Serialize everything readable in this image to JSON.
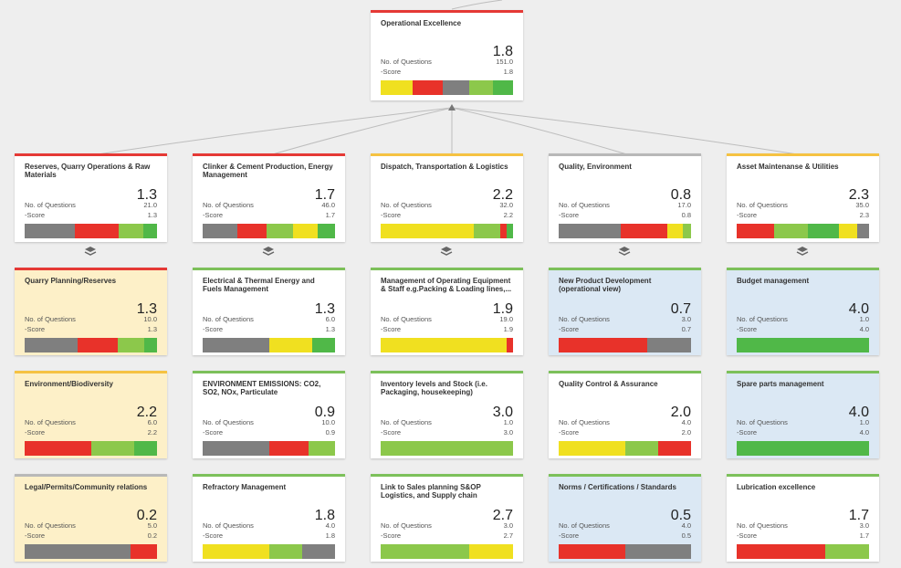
{
  "colors": {
    "red": "#e8322a",
    "yellow": "#f0e020",
    "gray": "#7f7f7f",
    "lightgreen": "#8cc84b",
    "green": "#50b848",
    "accent_red": "#e53935",
    "accent_yellow": "#f5c242",
    "accent_gray": "#b8b8b8",
    "accent_green": "#7cc05a"
  },
  "labels": {
    "questions": "No. of Questions",
    "score": "-Score"
  },
  "icons": {
    "expand": "layers-icon",
    "parent_link": "arrow-up-icon"
  },
  "root": {
    "title": "Operational Excellence",
    "score": "1.8",
    "questions": "151.0",
    "score_value": "1.8",
    "accent": "accent_red",
    "bar": [
      [
        "yellow",
        0.24
      ],
      [
        "red",
        0.23
      ],
      [
        "gray",
        0.2
      ],
      [
        "lightgreen",
        0.18
      ],
      [
        "green",
        0.15
      ]
    ]
  },
  "level1": [
    {
      "title": "Reserves, Quarry Operations & Raw Materials",
      "score": "1.3",
      "questions": "21.0",
      "score_value": "1.3",
      "accent": "accent_red",
      "bar": [
        [
          "gray",
          0.38
        ],
        [
          "red",
          0.33
        ],
        [
          "lightgreen",
          0.19
        ],
        [
          "green",
          0.1
        ]
      ]
    },
    {
      "title": "Clinker & Cement Production, Energy Management",
      "score": "1.7",
      "questions": "46.0",
      "score_value": "1.7",
      "accent": "accent_red",
      "bar": [
        [
          "gray",
          0.26
        ],
        [
          "red",
          0.22
        ],
        [
          "lightgreen",
          0.2
        ],
        [
          "yellow",
          0.19
        ],
        [
          "green",
          0.13
        ]
      ]
    },
    {
      "title": "Dispatch, Transportation & Logistics",
      "score": "2.2",
      "questions": "32.0",
      "score_value": "2.2",
      "accent": "accent_yellow",
      "bar": [
        [
          "yellow",
          0.7
        ],
        [
          "lightgreen",
          0.2
        ],
        [
          "red",
          0.05
        ],
        [
          "green",
          0.05
        ]
      ]
    },
    {
      "title": "Quality, Environment",
      "score": "0.8",
      "questions": "17.0",
      "score_value": "0.8",
      "accent": "accent_gray",
      "bar": [
        [
          "gray",
          0.47
        ],
        [
          "red",
          0.35
        ],
        [
          "yellow",
          0.12
        ],
        [
          "lightgreen",
          0.06
        ]
      ]
    },
    {
      "title": "Asset Maintenanse & Utilities",
      "score": "2.3",
      "questions": "35.0",
      "score_value": "2.3",
      "accent": "accent_yellow",
      "bar": [
        [
          "red",
          0.28
        ],
        [
          "lightgreen",
          0.26
        ],
        [
          "green",
          0.23
        ],
        [
          "yellow",
          0.14
        ],
        [
          "gray",
          0.09
        ]
      ]
    }
  ],
  "level2": [
    [
      {
        "title": "Quarry Planning/Reserves",
        "score": "1.3",
        "questions": "10.0",
        "score_value": "1.3",
        "accent": "accent_red",
        "bg": "yellowbg",
        "bar": [
          [
            "gray",
            0.4
          ],
          [
            "red",
            0.3
          ],
          [
            "lightgreen",
            0.2
          ],
          [
            "green",
            0.1
          ]
        ]
      },
      {
        "title": "Environment/Biodiversity",
        "score": "2.2",
        "questions": "6.0",
        "score_value": "2.2",
        "accent": "accent_yellow",
        "bg": "yellowbg",
        "bar": [
          [
            "red",
            0.5
          ],
          [
            "lightgreen",
            0.33
          ],
          [
            "green",
            0.17
          ]
        ]
      },
      {
        "title": "Legal/Permits/Community relations",
        "score": "0.2",
        "questions": "5.0",
        "score_value": "0.2",
        "accent": "accent_gray",
        "bg": "yellowbg",
        "bar": [
          [
            "gray",
            0.8
          ],
          [
            "red",
            0.2
          ]
        ]
      }
    ],
    [
      {
        "title": "Electrical & Thermal Energy and Fuels Management",
        "score": "1.3",
        "questions": "6.0",
        "score_value": "1.3",
        "accent": "accent_green",
        "bg": "",
        "bar": [
          [
            "gray",
            0.5
          ],
          [
            "yellow",
            0.33
          ],
          [
            "green",
            0.17
          ]
        ]
      },
      {
        "title": "ENVIRONMENT EMISSIONS: CO2, SO2, NOx, Particulate",
        "score": "0.9",
        "questions": "10.0",
        "score_value": "0.9",
        "accent": "accent_green",
        "bg": "",
        "bar": [
          [
            "gray",
            0.5
          ],
          [
            "red",
            0.3
          ],
          [
            "lightgreen",
            0.2
          ]
        ]
      },
      {
        "title": "Refractory Management",
        "score": "1.8",
        "questions": "4.0",
        "score_value": "1.8",
        "accent": "accent_green",
        "bg": "",
        "bar": [
          [
            "yellow",
            0.5
          ],
          [
            "lightgreen",
            0.25
          ],
          [
            "gray",
            0.25
          ]
        ]
      }
    ],
    [
      {
        "title": "Management of Operating Equipment & Staff e.g.Packing & Loading lines,...",
        "score": "1.9",
        "questions": "19.0",
        "score_value": "1.9",
        "accent": "accent_green",
        "bg": "",
        "bar": [
          [
            "yellow",
            0.95
          ],
          [
            "red",
            0.05
          ]
        ]
      },
      {
        "title": "Inventory levels and Stock (i.e. Packaging, housekeeping)",
        "score": "3.0",
        "questions": "1.0",
        "score_value": "3.0",
        "accent": "accent_green",
        "bg": "",
        "bar": [
          [
            "lightgreen",
            1.0
          ]
        ]
      },
      {
        "title": "Link to Sales planning S&OP Logistics, and Supply chain",
        "score": "2.7",
        "questions": "3.0",
        "score_value": "2.7",
        "accent": "accent_green",
        "bg": "",
        "bar": [
          [
            "lightgreen",
            0.67
          ],
          [
            "yellow",
            0.33
          ]
        ]
      }
    ],
    [
      {
        "title": "New Product Development (operational view)",
        "score": "0.7",
        "questions": "3.0",
        "score_value": "0.7",
        "accent": "accent_green",
        "bg": "bluebg",
        "bar": [
          [
            "red",
            0.67
          ],
          [
            "gray",
            0.33
          ]
        ]
      },
      {
        "title": "Quality Control & Assurance",
        "score": "2.0",
        "questions": "4.0",
        "score_value": "2.0",
        "accent": "accent_green",
        "bg": "",
        "bar": [
          [
            "yellow",
            0.5
          ],
          [
            "lightgreen",
            0.25
          ],
          [
            "red",
            0.25
          ]
        ]
      },
      {
        "title": "Norms / Certifications / Standards",
        "score": "0.5",
        "questions": "4.0",
        "score_value": "0.5",
        "accent": "accent_green",
        "bg": "bluebg",
        "bar": [
          [
            "red",
            0.5
          ],
          [
            "gray",
            0.5
          ]
        ]
      }
    ],
    [
      {
        "title": "Budget management",
        "score": "4.0",
        "questions": "1.0",
        "score_value": "4.0",
        "accent": "accent_green",
        "bg": "bluebg",
        "bar": [
          [
            "green",
            1.0
          ]
        ]
      },
      {
        "title": "Spare parts management",
        "score": "4.0",
        "questions": "1.0",
        "score_value": "4.0",
        "accent": "accent_green",
        "bg": "bluebg",
        "bar": [
          [
            "green",
            1.0
          ]
        ]
      },
      {
        "title": "Lubrication excellence",
        "score": "1.7",
        "questions": "3.0",
        "score_value": "1.7",
        "accent": "accent_green",
        "bg": "",
        "bar": [
          [
            "red",
            0.67
          ],
          [
            "lightgreen",
            0.33
          ]
        ]
      }
    ]
  ]
}
